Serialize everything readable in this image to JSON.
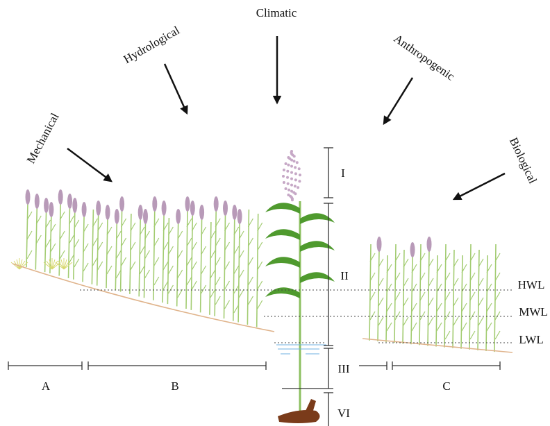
{
  "factors": {
    "mechanical": "Mechanical",
    "hydrological": "Hydrological",
    "climatic": "Climatic",
    "anthropogenic": "Anthropogenic",
    "biological": "Biological"
  },
  "zones": {
    "z1": "I",
    "z2": "II",
    "z3": "III",
    "z4": "VI"
  },
  "water_levels": {
    "high": "HWL",
    "mean": "MWL",
    "low": "LWL"
  },
  "sections": {
    "a": "A",
    "b": "B",
    "c": "C"
  }
}
